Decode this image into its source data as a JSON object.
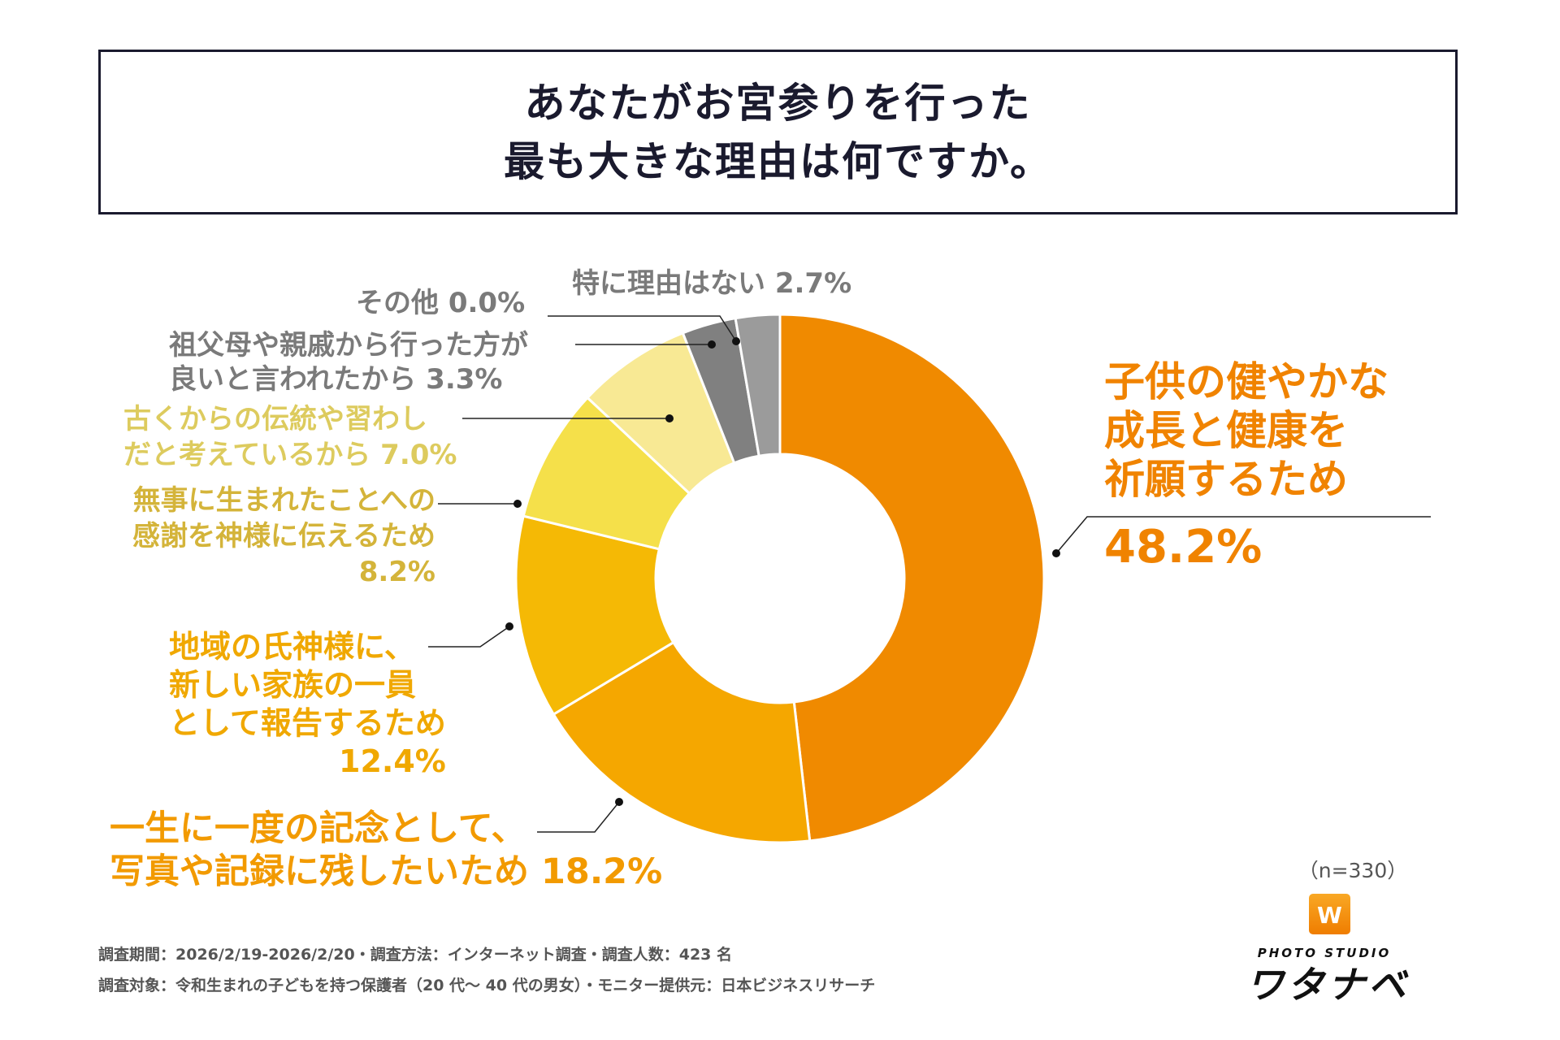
{
  "title": {
    "line1": "あなたがお宮参りを行った",
    "line2": "最も大きな理由は何ですか。"
  },
  "chart_data": {
    "type": "pie",
    "variant": "donut",
    "start": "top, clockwise",
    "slices": [
      {
        "label": "子供の健やかな成長と健康を祈願するため",
        "value": 48.2,
        "color": "#F08A00"
      },
      {
        "label": "一生に一度の記念として、写真や記録に残したいため",
        "value": 18.2,
        "color": "#F5A700"
      },
      {
        "label": "地域の氏神様に、新しい家族の一員として報告するため",
        "value": 12.4,
        "color": "#F5B905"
      },
      {
        "label": "無事に生まれたことへの感謝を神様に伝えるため",
        "value": 8.2,
        "color": "#F5E04A"
      },
      {
        "label": "古くからの伝統や習わしだと考えているから",
        "value": 7.0,
        "color": "#F8E994"
      },
      {
        "label": "祖父母や親戚から行った方が良いと言われたから",
        "value": 3.3,
        "color": "#808080"
      },
      {
        "label": "特に理由はない",
        "value": 2.7,
        "color": "#9B9B9B"
      },
      {
        "label": "その他",
        "value": 0.0,
        "color": "#B0B0B0"
      }
    ]
  },
  "labels": {
    "main": {
      "l1": "子供の健やかな",
      "l2": "成長と健康を",
      "l3": "祈願するため",
      "pct": "48.2%"
    },
    "kinen": {
      "l1": "一生に一度の記念として、",
      "l2": "写真や記録に残したいため",
      "pct": "18.2%"
    },
    "chiiki": {
      "l1": "地域の氏神様に、",
      "l2": "新しい家族の一員",
      "l3": "として報告するため",
      "pct": "12.4%"
    },
    "buji": {
      "l1": "無事に生まれたことへの",
      "l2": "感謝を神様に伝えるため",
      "pct": "8.2%"
    },
    "dento": {
      "l1": "古くからの伝統や習わし",
      "l2": "だと考えているから",
      "pct": "7.0%"
    },
    "sofubo": {
      "l1": "祖父母や親戚から行った方が",
      "l2": "良いと言われたから",
      "pct": "3.3%"
    },
    "tokuni": {
      "l1": "特に理由はない",
      "pct": "2.7%"
    },
    "sonota": {
      "l1": "その他",
      "pct": "0.0%"
    }
  },
  "sample": "（n=330）",
  "footer": {
    "line1": "調査期間：2026/2/19-2026/2/20・調査方法：インターネット調査・調査人数：423 名",
    "line2": "調査対象：令和生まれの子どもを持つ保護者（20 代～ 40 代の男女）・モニター提供元：日本ビジネスリサーチ"
  },
  "logo": {
    "sub": "PHOTO STUDIO",
    "main": "ワタナベ",
    "icon": "W"
  }
}
